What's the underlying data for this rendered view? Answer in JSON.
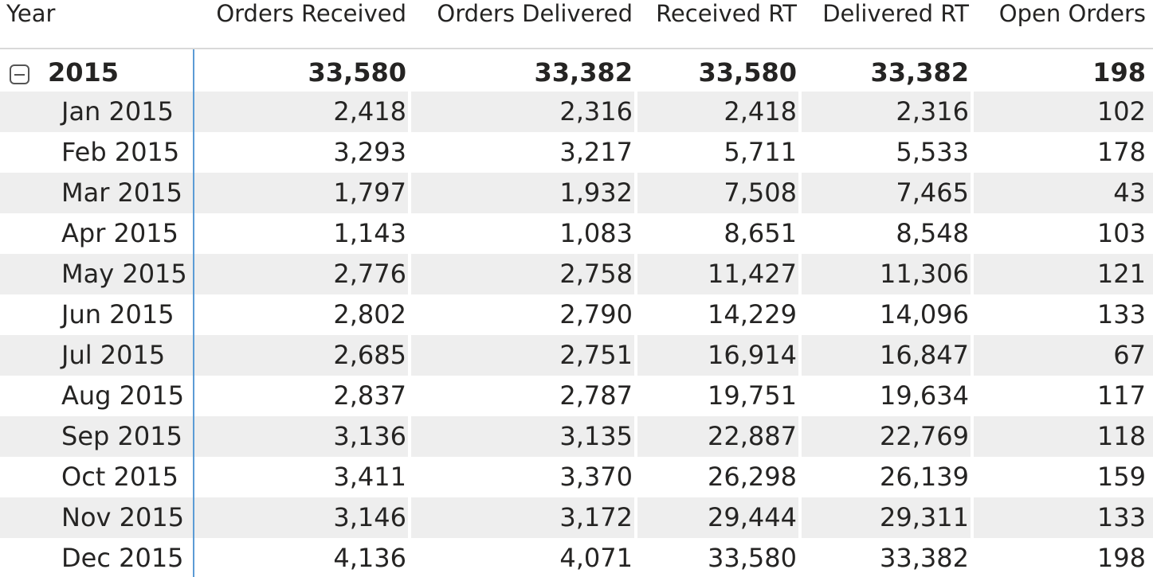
{
  "columns": {
    "year": "Year",
    "orders_received": "Orders Received",
    "orders_delivered": "Orders Delivered",
    "received_rt": "Received RT",
    "delivered_rt": "Delivered RT",
    "open_orders": "Open Orders"
  },
  "total": {
    "label": "2015",
    "orders_received": "33,580",
    "orders_delivered": "33,382",
    "received_rt": "33,580",
    "delivered_rt": "33,382",
    "open_orders": "198"
  },
  "rows": [
    {
      "label": "Jan 2015",
      "orders_received": "2,418",
      "orders_delivered": "2,316",
      "received_rt": "2,418",
      "delivered_rt": "2,316",
      "open_orders": "102"
    },
    {
      "label": "Feb 2015",
      "orders_received": "3,293",
      "orders_delivered": "3,217",
      "received_rt": "5,711",
      "delivered_rt": "5,533",
      "open_orders": "178"
    },
    {
      "label": "Mar 2015",
      "orders_received": "1,797",
      "orders_delivered": "1,932",
      "received_rt": "7,508",
      "delivered_rt": "7,465",
      "open_orders": "43"
    },
    {
      "label": "Apr 2015",
      "orders_received": "1,143",
      "orders_delivered": "1,083",
      "received_rt": "8,651",
      "delivered_rt": "8,548",
      "open_orders": "103"
    },
    {
      "label": "May 2015",
      "orders_received": "2,776",
      "orders_delivered": "2,758",
      "received_rt": "11,427",
      "delivered_rt": "11,306",
      "open_orders": "121"
    },
    {
      "label": "Jun 2015",
      "orders_received": "2,802",
      "orders_delivered": "2,790",
      "received_rt": "14,229",
      "delivered_rt": "14,096",
      "open_orders": "133"
    },
    {
      "label": "Jul 2015",
      "orders_received": "2,685",
      "orders_delivered": "2,751",
      "received_rt": "16,914",
      "delivered_rt": "16,847",
      "open_orders": "67"
    },
    {
      "label": "Aug 2015",
      "orders_received": "2,837",
      "orders_delivered": "2,787",
      "received_rt": "19,751",
      "delivered_rt": "19,634",
      "open_orders": "117"
    },
    {
      "label": "Sep 2015",
      "orders_received": "3,136",
      "orders_delivered": "3,135",
      "received_rt": "22,887",
      "delivered_rt": "22,769",
      "open_orders": "118"
    },
    {
      "label": "Oct 2015",
      "orders_received": "3,411",
      "orders_delivered": "3,370",
      "received_rt": "26,298",
      "delivered_rt": "26,139",
      "open_orders": "159"
    },
    {
      "label": "Nov 2015",
      "orders_received": "3,146",
      "orders_delivered": "3,172",
      "received_rt": "29,444",
      "delivered_rt": "29,311",
      "open_orders": "133"
    },
    {
      "label": "Dec 2015",
      "orders_received": "4,136",
      "orders_delivered": "4,071",
      "received_rt": "33,580",
      "delivered_rt": "33,382",
      "open_orders": "198"
    }
  ],
  "icons": {
    "collapse": "minus-square-icon"
  },
  "colors": {
    "row_shade": "#eeeeee",
    "frozen_column_line": "#5b9bd5"
  }
}
